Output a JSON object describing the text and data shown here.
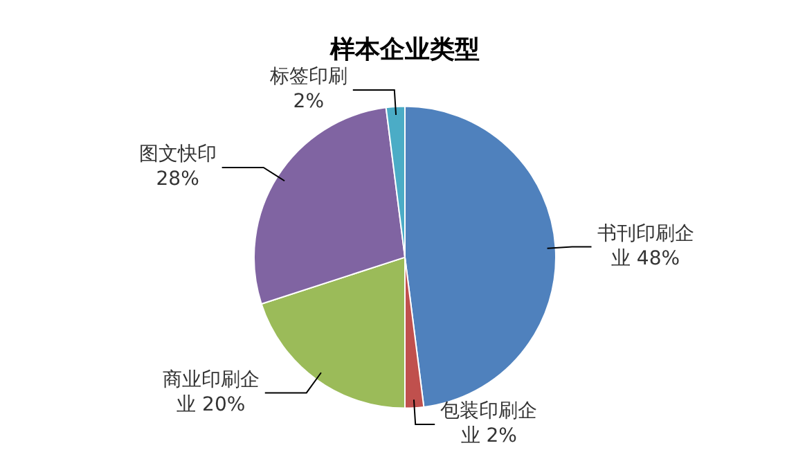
{
  "chart_data": {
    "type": "pie",
    "title": "样本企业类型",
    "categories": [
      "书刊印刷企业",
      "包装印刷企业",
      "商业印刷企业",
      "图文快印",
      "标签印刷"
    ],
    "values": [
      48,
      2,
      20,
      28,
      2
    ],
    "value_labels": [
      "48%",
      "2%",
      "20%",
      "28%",
      "2%"
    ],
    "colors": [
      "#4f81bd",
      "#c0504d",
      "#9bbb59",
      "#8064a2",
      "#4bacc6"
    ],
    "legend": false
  }
}
